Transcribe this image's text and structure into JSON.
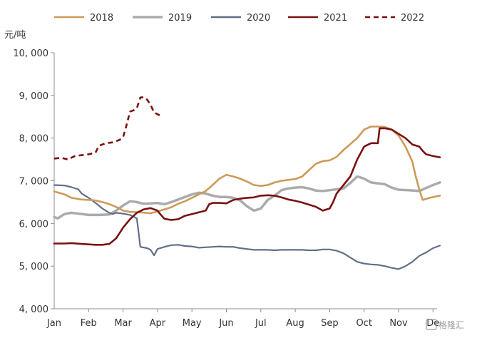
{
  "chart_data": {
    "type": "line",
    "y_unit": "元/吨",
    "ylim": [
      4000,
      10000
    ],
    "y_ticks": [
      4000,
      5000,
      6000,
      7000,
      8000,
      9000,
      10000
    ],
    "y_tick_labels": [
      "4, 000",
      "5, 000",
      "6, 000",
      "7, 000",
      "8, 000",
      "9, 000",
      "10, 000"
    ],
    "xlim": [
      0,
      11.2
    ],
    "x_ticks": [
      0,
      1,
      2,
      3,
      4,
      5,
      6,
      7,
      8,
      9,
      10,
      11
    ],
    "x_tick_labels": [
      "Jan",
      "Feb",
      "Mar",
      "Apr",
      "May",
      "Jun",
      "Jul",
      "Aug",
      "Sep",
      "Oct",
      "Nov",
      "De"
    ],
    "grid": false,
    "legend": "top",
    "series": [
      {
        "name": "2018",
        "color": "#cc9a5a",
        "dash": "solid",
        "points": [
          [
            0,
            6750
          ],
          [
            0.3,
            6680
          ],
          [
            0.5,
            6600
          ],
          [
            0.8,
            6560
          ],
          [
            1.2,
            6540
          ],
          [
            1.5,
            6480
          ],
          [
            1.7,
            6420
          ],
          [
            1.9,
            6350
          ],
          [
            2.0,
            6300
          ],
          [
            2.2,
            6270
          ],
          [
            2.5,
            6260
          ],
          [
            2.8,
            6240
          ],
          [
            3.0,
            6280
          ],
          [
            3.2,
            6330
          ],
          [
            3.4,
            6380
          ],
          [
            3.6,
            6460
          ],
          [
            3.8,
            6520
          ],
          [
            4.0,
            6600
          ],
          [
            4.2,
            6680
          ],
          [
            4.4,
            6760
          ],
          [
            4.6,
            6900
          ],
          [
            4.8,
            7050
          ],
          [
            5.0,
            7140
          ],
          [
            5.2,
            7100
          ],
          [
            5.4,
            7050
          ],
          [
            5.6,
            6980
          ],
          [
            5.8,
            6900
          ],
          [
            6.0,
            6880
          ],
          [
            6.2,
            6900
          ],
          [
            6.4,
            6960
          ],
          [
            6.6,
            7000
          ],
          [
            6.8,
            7020
          ],
          [
            7.0,
            7040
          ],
          [
            7.2,
            7100
          ],
          [
            7.4,
            7250
          ],
          [
            7.6,
            7400
          ],
          [
            7.8,
            7460
          ],
          [
            8.0,
            7480
          ],
          [
            8.2,
            7560
          ],
          [
            8.4,
            7720
          ],
          [
            8.6,
            7860
          ],
          [
            8.8,
            8000
          ],
          [
            9.0,
            8200
          ],
          [
            9.2,
            8270
          ],
          [
            9.4,
            8270
          ],
          [
            9.6,
            8260
          ],
          [
            9.8,
            8200
          ],
          [
            10.0,
            8060
          ],
          [
            10.2,
            7800
          ],
          [
            10.4,
            7450
          ],
          [
            10.5,
            7100
          ],
          [
            10.6,
            6800
          ],
          [
            10.7,
            6550
          ],
          [
            10.9,
            6600
          ],
          [
            11.2,
            6650
          ]
        ]
      },
      {
        "name": "2019",
        "color": "#ababab",
        "dash": "solid",
        "points": [
          [
            0,
            6150
          ],
          [
            0.1,
            6120
          ],
          [
            0.3,
            6220
          ],
          [
            0.5,
            6250
          ],
          [
            0.8,
            6220
          ],
          [
            1.0,
            6200
          ],
          [
            1.3,
            6200
          ],
          [
            1.6,
            6210
          ],
          [
            1.8,
            6300
          ],
          [
            2.0,
            6420
          ],
          [
            2.2,
            6520
          ],
          [
            2.4,
            6500
          ],
          [
            2.6,
            6460
          ],
          [
            2.8,
            6470
          ],
          [
            3.0,
            6480
          ],
          [
            3.2,
            6450
          ],
          [
            3.4,
            6500
          ],
          [
            3.6,
            6560
          ],
          [
            3.8,
            6620
          ],
          [
            4.0,
            6680
          ],
          [
            4.2,
            6720
          ],
          [
            4.4,
            6700
          ],
          [
            4.6,
            6650
          ],
          [
            4.8,
            6620
          ],
          [
            5.0,
            6620
          ],
          [
            5.2,
            6600
          ],
          [
            5.4,
            6540
          ],
          [
            5.6,
            6400
          ],
          [
            5.8,
            6300
          ],
          [
            6.0,
            6350
          ],
          [
            6.2,
            6550
          ],
          [
            6.4,
            6650
          ],
          [
            6.6,
            6780
          ],
          [
            6.8,
            6820
          ],
          [
            7.0,
            6840
          ],
          [
            7.2,
            6850
          ],
          [
            7.4,
            6820
          ],
          [
            7.6,
            6770
          ],
          [
            7.8,
            6760
          ],
          [
            8.0,
            6780
          ],
          [
            8.2,
            6800
          ],
          [
            8.4,
            6820
          ],
          [
            8.6,
            6950
          ],
          [
            8.8,
            7100
          ],
          [
            9.0,
            7050
          ],
          [
            9.2,
            6960
          ],
          [
            9.4,
            6940
          ],
          [
            9.6,
            6920
          ],
          [
            9.8,
            6840
          ],
          [
            10.0,
            6790
          ],
          [
            10.3,
            6780
          ],
          [
            10.6,
            6760
          ],
          [
            10.8,
            6830
          ],
          [
            11.0,
            6900
          ],
          [
            11.2,
            6960
          ]
        ]
      },
      {
        "name": "2020",
        "color": "#626f88",
        "dash": "solid",
        "points": [
          [
            0,
            6900
          ],
          [
            0.3,
            6890
          ],
          [
            0.5,
            6850
          ],
          [
            0.7,
            6800
          ],
          [
            0.8,
            6700
          ],
          [
            1.0,
            6600
          ],
          [
            1.2,
            6480
          ],
          [
            1.4,
            6350
          ],
          [
            1.5,
            6300
          ],
          [
            1.6,
            6250
          ],
          [
            1.7,
            6220
          ],
          [
            1.8,
            6250
          ],
          [
            2.0,
            6230
          ],
          [
            2.2,
            6200
          ],
          [
            2.4,
            6120
          ],
          [
            2.45,
            5800
          ],
          [
            2.5,
            5450
          ],
          [
            2.7,
            5420
          ],
          [
            2.8,
            5380
          ],
          [
            2.9,
            5250
          ],
          [
            3.0,
            5400
          ],
          [
            3.2,
            5450
          ],
          [
            3.4,
            5490
          ],
          [
            3.6,
            5500
          ],
          [
            3.8,
            5470
          ],
          [
            4.0,
            5460
          ],
          [
            4.2,
            5430
          ],
          [
            4.4,
            5440
          ],
          [
            4.6,
            5450
          ],
          [
            4.8,
            5460
          ],
          [
            5.0,
            5450
          ],
          [
            5.2,
            5450
          ],
          [
            5.4,
            5420
          ],
          [
            5.6,
            5400
          ],
          [
            5.8,
            5380
          ],
          [
            6.0,
            5380
          ],
          [
            6.2,
            5380
          ],
          [
            6.4,
            5370
          ],
          [
            6.6,
            5380
          ],
          [
            6.8,
            5380
          ],
          [
            7.0,
            5380
          ],
          [
            7.2,
            5380
          ],
          [
            7.4,
            5370
          ],
          [
            7.6,
            5370
          ],
          [
            7.8,
            5390
          ],
          [
            8.0,
            5390
          ],
          [
            8.2,
            5360
          ],
          [
            8.4,
            5300
          ],
          [
            8.6,
            5200
          ],
          [
            8.8,
            5100
          ],
          [
            9.0,
            5060
          ],
          [
            9.2,
            5040
          ],
          [
            9.4,
            5030
          ],
          [
            9.6,
            5000
          ],
          [
            9.8,
            4960
          ],
          [
            10.0,
            4930
          ],
          [
            10.2,
            5000
          ],
          [
            10.4,
            5100
          ],
          [
            10.6,
            5240
          ],
          [
            10.8,
            5320
          ],
          [
            11.0,
            5420
          ],
          [
            11.2,
            5480
          ]
        ]
      },
      {
        "name": "2021",
        "color": "#7a1212",
        "dash": "solid",
        "points": [
          [
            0,
            5530
          ],
          [
            0.3,
            5530
          ],
          [
            0.5,
            5540
          ],
          [
            0.8,
            5520
          ],
          [
            1.0,
            5510
          ],
          [
            1.2,
            5500
          ],
          [
            1.4,
            5500
          ],
          [
            1.6,
            5520
          ],
          [
            1.8,
            5650
          ],
          [
            2.0,
            5900
          ],
          [
            2.2,
            6100
          ],
          [
            2.4,
            6250
          ],
          [
            2.6,
            6330
          ],
          [
            2.8,
            6360
          ],
          [
            3.0,
            6300
          ],
          [
            3.1,
            6200
          ],
          [
            3.2,
            6110
          ],
          [
            3.4,
            6080
          ],
          [
            3.6,
            6100
          ],
          [
            3.8,
            6180
          ],
          [
            4.0,
            6220
          ],
          [
            4.2,
            6260
          ],
          [
            4.4,
            6300
          ],
          [
            4.5,
            6450
          ],
          [
            4.6,
            6480
          ],
          [
            4.8,
            6480
          ],
          [
            5.0,
            6470
          ],
          [
            5.2,
            6550
          ],
          [
            5.4,
            6580
          ],
          [
            5.6,
            6600
          ],
          [
            5.8,
            6610
          ],
          [
            6.0,
            6650
          ],
          [
            6.2,
            6660
          ],
          [
            6.4,
            6650
          ],
          [
            6.6,
            6610
          ],
          [
            6.8,
            6560
          ],
          [
            7.0,
            6530
          ],
          [
            7.2,
            6490
          ],
          [
            7.4,
            6440
          ],
          [
            7.6,
            6390
          ],
          [
            7.8,
            6300
          ],
          [
            8.0,
            6350
          ],
          [
            8.1,
            6500
          ],
          [
            8.2,
            6700
          ],
          [
            8.4,
            6900
          ],
          [
            8.6,
            7100
          ],
          [
            8.8,
            7500
          ],
          [
            9.0,
            7800
          ],
          [
            9.2,
            7880
          ],
          [
            9.4,
            7880
          ],
          [
            9.45,
            8230
          ],
          [
            9.6,
            8230
          ],
          [
            9.8,
            8200
          ],
          [
            10.0,
            8100
          ],
          [
            10.2,
            8000
          ],
          [
            10.4,
            7850
          ],
          [
            10.6,
            7800
          ],
          [
            10.7,
            7700
          ],
          [
            10.8,
            7620
          ],
          [
            11.0,
            7580
          ],
          [
            11.2,
            7550
          ]
        ]
      },
      {
        "name": "2022",
        "color": "#7a1212",
        "dash": "dashed",
        "points": [
          [
            0,
            7520
          ],
          [
            0.2,
            7540
          ],
          [
            0.4,
            7500
          ],
          [
            0.6,
            7580
          ],
          [
            0.8,
            7600
          ],
          [
            1.0,
            7620
          ],
          [
            1.2,
            7660
          ],
          [
            1.3,
            7820
          ],
          [
            1.5,
            7880
          ],
          [
            1.7,
            7900
          ],
          [
            1.9,
            7960
          ],
          [
            2.0,
            8020
          ],
          [
            2.1,
            8300
          ],
          [
            2.2,
            8620
          ],
          [
            2.3,
            8650
          ],
          [
            2.4,
            8700
          ],
          [
            2.5,
            8950
          ],
          [
            2.6,
            8960
          ],
          [
            2.7,
            8900
          ],
          [
            2.8,
            8780
          ],
          [
            2.9,
            8600
          ],
          [
            3.0,
            8560
          ],
          [
            3.1,
            8520
          ]
        ]
      }
    ]
  },
  "watermark": "格隆汇"
}
